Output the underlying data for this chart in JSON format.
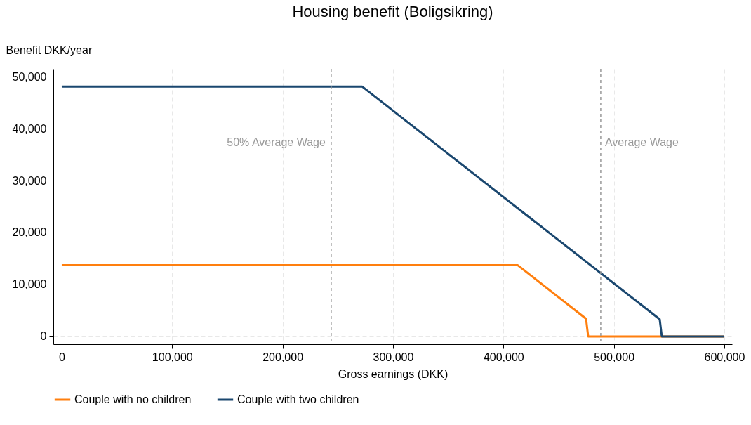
{
  "chart_data": {
    "type": "line",
    "title": "Housing benefit (Boligsikring)",
    "xlabel": "Gross earnings (DKK)",
    "ylabel": "Benefit DKK/year",
    "series": [
      {
        "name": "Couple with no children",
        "color": "#ff7f0e",
        "x": [
          0,
          413000,
          474800,
          476700,
          600000
        ],
        "values": [
          13700,
          13700,
          3400,
          0,
          0
        ]
      },
      {
        "name": "Couple with two children",
        "color": "#1a476f",
        "x": [
          0,
          272000,
          541500,
          543400,
          600000
        ],
        "values": [
          48100,
          48100,
          3300,
          0,
          0
        ]
      }
    ],
    "xlim": [
      -7600,
      607000
    ],
    "ylim": [
      -1500,
      51500
    ],
    "xticks": [
      0,
      {
        "value": 100000,
        "label": "100,000"
      },
      {
        "value": 200000,
        "label": "200,000"
      },
      {
        "value": 300000,
        "label": "300,000"
      },
      {
        "value": 400000,
        "label": "400,000"
      },
      {
        "value": 500000,
        "label": "500,000"
      },
      {
        "value": 600000,
        "label": "600,000"
      }
    ],
    "yticks": [
      0,
      {
        "value": 10000,
        "label": "10,000"
      },
      {
        "value": 20000,
        "label": "20,000"
      },
      {
        "value": 30000,
        "label": "30,000"
      },
      {
        "value": 40000,
        "label": "40,000"
      },
      {
        "value": 50000,
        "label": "50,000"
      }
    ],
    "ref_lines": [
      {
        "axis": "x",
        "value": 244000,
        "label": "50% Average Wage",
        "color": "#999999",
        "line_style": "dashed"
      },
      {
        "axis": "x",
        "value": 488100,
        "label": "Average Wage",
        "color": "#999999",
        "line_style": "dashed"
      }
    ],
    "grid": true,
    "legend": "bottom",
    "marker": "none",
    "line_style": "solid"
  }
}
